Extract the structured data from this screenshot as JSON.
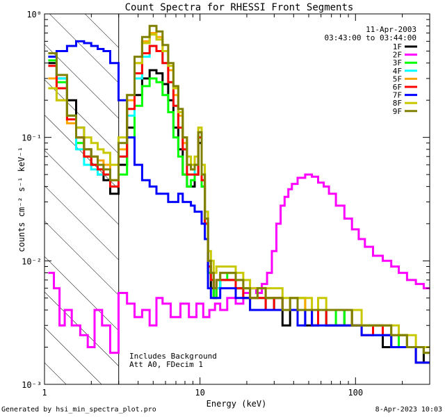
{
  "chart_data": {
    "type": "line",
    "title": "Count Spectra for RHESSI Front Segments",
    "xlabel": "Energy (keV)",
    "ylabel": "counts cm⁻² s⁻¹ keV⁻¹",
    "xscale": "log",
    "yscale": "log",
    "xlim": [
      1,
      300
    ],
    "ylim": [
      0.001,
      1
    ],
    "x_ticks": [
      {
        "value": 1,
        "label": "1"
      },
      {
        "value": 10,
        "label": "10"
      },
      {
        "value": 100,
        "label": "100"
      }
    ],
    "y_ticks": [
      {
        "value": 1,
        "label": "10⁰"
      },
      {
        "value": 0.1,
        "label": "10⁻¹"
      },
      {
        "value": 0.01,
        "label": "10⁻²"
      },
      {
        "value": 0.001,
        "label": "10⁻³"
      }
    ],
    "shaded_region": {
      "x_from": 1,
      "x_to": 3,
      "pattern": "diagonal hatch"
    },
    "legend": {
      "position": "top-right",
      "date": "11-Apr-2003",
      "time_range": "03:43:00 to 03:44:00"
    },
    "annotations": [
      "Includes Background",
      "Att A0, FDecim 1"
    ],
    "series": [
      {
        "name": "1F",
        "color": "#000000",
        "x": [
          1.1,
          1.3,
          1.5,
          1.7,
          1.9,
          2.1,
          2.3,
          2.5,
          2.8,
          3.2,
          3.6,
          4.0,
          4.5,
          5.0,
          5.5,
          6.0,
          6.5,
          7.0,
          7.5,
          8.0,
          8.5,
          9.0,
          9.5,
          10,
          10.5,
          11,
          11.5,
          12,
          12.5,
          13,
          14,
          16,
          18,
          20,
          22,
          25,
          28,
          32,
          36,
          40,
          45,
          50,
          55,
          60,
          70,
          80,
          90,
          100,
          120,
          140,
          160,
          180,
          200,
          230,
          260,
          290
        ],
        "y": [
          0.4,
          0.3,
          0.2,
          0.12,
          0.08,
          0.06,
          0.05,
          0.045,
          0.035,
          0.06,
          0.12,
          0.22,
          0.3,
          0.35,
          0.33,
          0.27,
          0.2,
          0.12,
          0.08,
          0.05,
          0.04,
          0.04,
          0.05,
          0.09,
          0.04,
          0.02,
          0.008,
          0.006,
          0.005,
          0.006,
          0.007,
          0.007,
          0.006,
          0.005,
          0.004,
          0.004,
          0.005,
          0.004,
          0.003,
          0.004,
          0.004,
          0.003,
          0.003,
          0.004,
          0.003,
          0.003,
          0.004,
          0.003,
          0.003,
          0.003,
          0.002,
          0.002,
          0.0025,
          0.002,
          0.002,
          0.0015
        ]
      },
      {
        "name": "2F",
        "color": "#ff00ff",
        "x": [
          1.1,
          1.2,
          1.3,
          1.4,
          1.6,
          1.8,
          2.0,
          2.2,
          2.5,
          2.8,
          3.2,
          3.6,
          4.0,
          4.5,
          5.0,
          5.5,
          6.0,
          7.0,
          8.0,
          9.0,
          10,
          11,
          12,
          13,
          14,
          16,
          18,
          20,
          22,
          24,
          26,
          28,
          30,
          32,
          34,
          36,
          38,
          40,
          45,
          50,
          55,
          60,
          65,
          70,
          80,
          90,
          100,
          110,
          120,
          140,
          160,
          180,
          200,
          230,
          260,
          290
        ],
        "y": [
          0.008,
          0.006,
          0.003,
          0.004,
          0.003,
          0.0025,
          0.002,
          0.004,
          0.003,
          0.0018,
          0.0055,
          0.0045,
          0.0035,
          0.004,
          0.003,
          0.005,
          0.0045,
          0.0035,
          0.0045,
          0.0035,
          0.0045,
          0.0035,
          0.004,
          0.0045,
          0.004,
          0.005,
          0.0045,
          0.0055,
          0.006,
          0.0055,
          0.0065,
          0.008,
          0.012,
          0.02,
          0.028,
          0.033,
          0.038,
          0.042,
          0.047,
          0.05,
          0.048,
          0.043,
          0.04,
          0.035,
          0.028,
          0.022,
          0.018,
          0.015,
          0.013,
          0.011,
          0.01,
          0.009,
          0.008,
          0.007,
          0.0065,
          0.006
        ]
      },
      {
        "name": "3F",
        "color": "#00ff00",
        "x": [
          1.1,
          1.3,
          1.5,
          1.7,
          1.9,
          2.1,
          2.3,
          2.5,
          2.8,
          3.2,
          3.6,
          4.0,
          4.5,
          5.0,
          5.5,
          6.0,
          6.5,
          7.0,
          7.5,
          8.0,
          8.5,
          9.0,
          9.5,
          10,
          10.5,
          11,
          11.5,
          12,
          12.5,
          13,
          14,
          16,
          18,
          20,
          22,
          25,
          28,
          32,
          36,
          40,
          45,
          50,
          55,
          60,
          70,
          80,
          90,
          100,
          120,
          140,
          160,
          180,
          200,
          230,
          260,
          290
        ],
        "y": [
          0.42,
          0.28,
          0.15,
          0.09,
          0.07,
          0.06,
          0.055,
          0.05,
          0.04,
          0.05,
          0.1,
          0.18,
          0.26,
          0.3,
          0.28,
          0.22,
          0.16,
          0.1,
          0.07,
          0.05,
          0.04,
          0.045,
          0.05,
          0.1,
          0.04,
          0.02,
          0.008,
          0.007,
          0.005,
          0.006,
          0.007,
          0.008,
          0.006,
          0.006,
          0.005,
          0.005,
          0.005,
          0.004,
          0.004,
          0.004,
          0.005,
          0.004,
          0.004,
          0.004,
          0.003,
          0.004,
          0.003,
          0.003,
          0.003,
          0.003,
          0.0025,
          0.002,
          0.0025,
          0.002,
          0.002,
          0.0018
        ]
      },
      {
        "name": "4F",
        "color": "#00ffff",
        "x": [
          1.1,
          1.3,
          1.5,
          1.7,
          1.9,
          2.1,
          2.3,
          2.5,
          2.8,
          3.2,
          3.6,
          4.0,
          4.5,
          5.0,
          5.5,
          6.0,
          6.5,
          7.0,
          7.5,
          8.0,
          8.5,
          9.0,
          9.5,
          10,
          10.5,
          11,
          11.5,
          12,
          12.5,
          13,
          14,
          16,
          18,
          20,
          22,
          25,
          28,
          32,
          36,
          40,
          45,
          50,
          55,
          60,
          70,
          80,
          90,
          100,
          120,
          140,
          160,
          180,
          200,
          230,
          260,
          290
        ],
        "y": [
          0.45,
          0.3,
          0.15,
          0.08,
          0.06,
          0.055,
          0.05,
          0.05,
          0.04,
          0.07,
          0.15,
          0.3,
          0.45,
          0.55,
          0.5,
          0.4,
          0.28,
          0.18,
          0.12,
          0.08,
          0.05,
          0.05,
          0.06,
          0.1,
          0.05,
          0.02,
          0.009,
          0.007,
          0.006,
          0.006,
          0.007,
          0.007,
          0.006,
          0.005,
          0.005,
          0.005,
          0.004,
          0.005,
          0.004,
          0.004,
          0.004,
          0.004,
          0.003,
          0.004,
          0.003,
          0.003,
          0.003,
          0.003,
          0.003,
          0.0025,
          0.0025,
          0.002,
          0.002,
          0.002,
          0.0015,
          0.0015
        ]
      },
      {
        "name": "5F",
        "color": "#ffa500",
        "x": [
          1.1,
          1.3,
          1.5,
          1.7,
          1.9,
          2.1,
          2.3,
          2.5,
          2.8,
          3.2,
          3.6,
          4.0,
          4.5,
          5.0,
          5.5,
          6.0,
          6.5,
          7.0,
          7.5,
          8.0,
          8.5,
          9.0,
          9.5,
          10,
          10.5,
          11,
          11.5,
          12,
          12.5,
          13,
          14,
          16,
          18,
          20,
          22,
          25,
          28,
          32,
          36,
          40,
          45,
          50,
          55,
          60,
          70,
          80,
          90,
          100,
          120,
          140,
          160,
          180,
          200,
          230,
          260,
          290
        ],
        "y": [
          0.3,
          0.2,
          0.13,
          0.1,
          0.08,
          0.07,
          0.065,
          0.06,
          0.045,
          0.08,
          0.2,
          0.4,
          0.6,
          0.7,
          0.65,
          0.5,
          0.35,
          0.22,
          0.15,
          0.09,
          0.06,
          0.055,
          0.06,
          0.11,
          0.05,
          0.022,
          0.01,
          0.008,
          0.006,
          0.007,
          0.008,
          0.008,
          0.007,
          0.006,
          0.005,
          0.006,
          0.005,
          0.005,
          0.004,
          0.005,
          0.005,
          0.004,
          0.004,
          0.004,
          0.004,
          0.004,
          0.004,
          0.003,
          0.003,
          0.003,
          0.003,
          0.0025,
          0.0025,
          0.002,
          0.002,
          0.0018
        ]
      },
      {
        "name": "6F",
        "color": "#ff0000",
        "x": [
          1.1,
          1.3,
          1.5,
          1.7,
          1.9,
          2.1,
          2.3,
          2.5,
          2.8,
          3.2,
          3.6,
          4.0,
          4.5,
          5.0,
          5.5,
          6.0,
          6.5,
          7.0,
          7.5,
          8.0,
          8.5,
          9.0,
          9.5,
          10,
          10.5,
          11,
          11.5,
          12,
          12.5,
          13,
          14,
          16,
          18,
          20,
          22,
          25,
          28,
          32,
          36,
          40,
          45,
          50,
          55,
          60,
          70,
          80,
          90,
          100,
          120,
          140,
          160,
          180,
          200,
          230,
          260,
          290
        ],
        "y": [
          0.38,
          0.25,
          0.14,
          0.1,
          0.07,
          0.06,
          0.055,
          0.05,
          0.04,
          0.07,
          0.17,
          0.33,
          0.48,
          0.55,
          0.5,
          0.4,
          0.28,
          0.18,
          0.12,
          0.08,
          0.05,
          0.05,
          0.05,
          0.1,
          0.045,
          0.02,
          0.009,
          0.007,
          0.006,
          0.007,
          0.007,
          0.007,
          0.006,
          0.005,
          0.005,
          0.005,
          0.004,
          0.005,
          0.004,
          0.004,
          0.004,
          0.004,
          0.003,
          0.004,
          0.003,
          0.003,
          0.003,
          0.003,
          0.0025,
          0.003,
          0.0025,
          0.002,
          0.002,
          0.002,
          0.0015,
          0.0015
        ]
      },
      {
        "name": "7F",
        "color": "#0000ff",
        "x": [
          1.1,
          1.3,
          1.5,
          1.7,
          1.9,
          2.1,
          2.3,
          2.5,
          2.8,
          3.2,
          3.6,
          4.0,
          4.5,
          5.0,
          5.5,
          6.0,
          6.5,
          7.0,
          7.5,
          8.0,
          8.5,
          9.0,
          9.5,
          10,
          10.5,
          11,
          11.5,
          12,
          12.5,
          13,
          14,
          16,
          18,
          20,
          22,
          25,
          28,
          32,
          36,
          40,
          45,
          50,
          55,
          60,
          70,
          80,
          90,
          100,
          120,
          140,
          160,
          180,
          200,
          230,
          260,
          290
        ],
        "y": [
          0.45,
          0.5,
          0.55,
          0.6,
          0.58,
          0.55,
          0.52,
          0.5,
          0.4,
          0.2,
          0.1,
          0.06,
          0.045,
          0.04,
          0.035,
          0.035,
          0.03,
          0.03,
          0.035,
          0.03,
          0.03,
          0.028,
          0.025,
          0.025,
          0.02,
          0.015,
          0.006,
          0.005,
          0.005,
          0.005,
          0.006,
          0.006,
          0.005,
          0.005,
          0.004,
          0.004,
          0.004,
          0.004,
          0.004,
          0.004,
          0.003,
          0.004,
          0.003,
          0.003,
          0.003,
          0.003,
          0.003,
          0.003,
          0.0025,
          0.0025,
          0.0025,
          0.002,
          0.002,
          0.002,
          0.0015,
          0.0015
        ]
      },
      {
        "name": "8F",
        "color": "#c8c800",
        "x": [
          1.1,
          1.3,
          1.5,
          1.7,
          1.9,
          2.1,
          2.3,
          2.5,
          2.8,
          3.2,
          3.6,
          4.0,
          4.5,
          5.0,
          5.5,
          6.0,
          6.5,
          7.0,
          7.5,
          8.0,
          8.5,
          9.0,
          9.5,
          10,
          10.5,
          11,
          11.5,
          12,
          12.5,
          13,
          14,
          16,
          18,
          20,
          22,
          25,
          28,
          32,
          36,
          40,
          45,
          50,
          55,
          60,
          70,
          80,
          90,
          100,
          120,
          140,
          160,
          180,
          200,
          230,
          260,
          290
        ],
        "y": [
          0.25,
          0.2,
          0.15,
          0.12,
          0.1,
          0.09,
          0.08,
          0.075,
          0.06,
          0.1,
          0.22,
          0.4,
          0.58,
          0.68,
          0.62,
          0.5,
          0.38,
          0.25,
          0.16,
          0.1,
          0.07,
          0.06,
          0.07,
          0.12,
          0.06,
          0.025,
          0.012,
          0.01,
          0.008,
          0.009,
          0.009,
          0.009,
          0.008,
          0.007,
          0.006,
          0.006,
          0.006,
          0.006,
          0.005,
          0.005,
          0.005,
          0.005,
          0.004,
          0.005,
          0.004,
          0.004,
          0.004,
          0.004,
          0.003,
          0.003,
          0.003,
          0.003,
          0.0025,
          0.0025,
          0.002,
          0.002
        ]
      },
      {
        "name": "9F",
        "color": "#808000",
        "x": [
          1.1,
          1.3,
          1.5,
          1.7,
          1.9,
          2.1,
          2.3,
          2.5,
          2.8,
          3.2,
          3.6,
          4.0,
          4.5,
          5.0,
          5.5,
          6.0,
          6.5,
          7.0,
          7.5,
          8.0,
          8.5,
          9.0,
          9.5,
          10,
          10.5,
          11,
          11.5,
          12,
          12.5,
          13,
          14,
          16,
          18,
          20,
          22,
          25,
          28,
          32,
          36,
          40,
          45,
          50,
          55,
          60,
          70,
          80,
          90,
          100,
          120,
          140,
          160,
          180,
          200,
          230,
          260,
          290
        ],
        "y": [
          0.48,
          0.32,
          0.15,
          0.1,
          0.08,
          0.07,
          0.06,
          0.055,
          0.045,
          0.09,
          0.22,
          0.45,
          0.65,
          0.8,
          0.72,
          0.56,
          0.4,
          0.26,
          0.17,
          0.1,
          0.06,
          0.055,
          0.06,
          0.11,
          0.05,
          0.022,
          0.01,
          0.008,
          0.006,
          0.007,
          0.008,
          0.008,
          0.007,
          0.006,
          0.005,
          0.006,
          0.005,
          0.005,
          0.004,
          0.005,
          0.004,
          0.004,
          0.004,
          0.004,
          0.004,
          0.004,
          0.004,
          0.003,
          0.003,
          0.003,
          0.003,
          0.0025,
          0.0025,
          0.002,
          0.002,
          0.0018
        ]
      }
    ]
  },
  "footer": {
    "generated_by": "Generated by hsi_min_spectra_plot.pro",
    "timestamp": "8-Apr-2023 10:03"
  }
}
